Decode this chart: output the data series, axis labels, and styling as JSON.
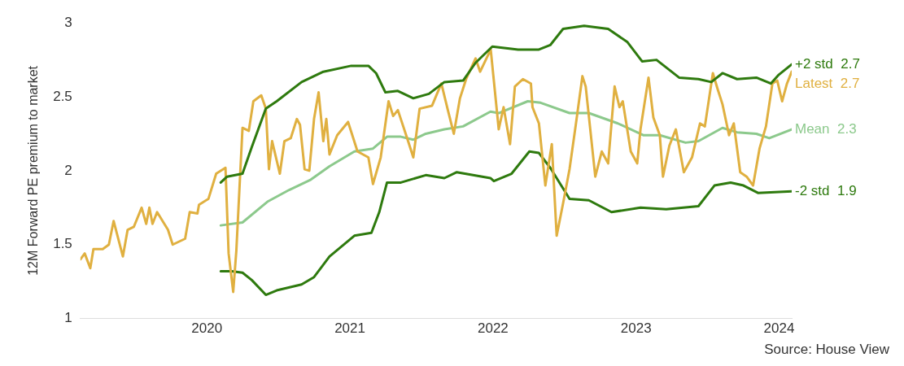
{
  "chart_data": {
    "type": "line",
    "ylabel": "12M Forward PE premium to market",
    "xlim": [
      2019.116,
      2024.088
    ],
    "xticks": [
      2020,
      2021,
      2022,
      2023,
      2024
    ],
    "ylim": [
      1,
      3
    ],
    "yticks": [
      1,
      1.5,
      2,
      2.5,
      3
    ],
    "grid": false,
    "legend": false,
    "marker": "none",
    "line_style": "solid",
    "annotations": [
      "Source: House View"
    ],
    "series": [
      {
        "name": "+2 std  2.7",
        "color": "#2e7a0e",
        "x": [
          2020.097,
          2020.141,
          2020.249,
          2020.314,
          2020.412,
          2020.488,
          2020.662,
          2020.814,
          2021.009,
          2021.129,
          2021.183,
          2021.248,
          2021.335,
          2021.443,
          2021.552,
          2021.66,
          2021.791,
          2021.878,
          2021.995,
          2022.175,
          2022.321,
          2022.4,
          2022.49,
          2022.637,
          2022.805,
          2022.94,
          2023.042,
          2023.143,
          2023.301,
          2023.436,
          2023.526,
          2023.604,
          2023.706,
          2023.841,
          2023.942,
          2023.998,
          2024.088
        ],
        "values": [
          1.92,
          1.96,
          1.98,
          2.16,
          2.42,
          2.47,
          2.6,
          2.67,
          2.71,
          2.71,
          2.66,
          2.53,
          2.54,
          2.49,
          2.52,
          2.6,
          2.61,
          2.73,
          2.84,
          2.82,
          2.82,
          2.85,
          2.96,
          2.98,
          2.96,
          2.87,
          2.74,
          2.75,
          2.63,
          2.62,
          2.6,
          2.66,
          2.62,
          2.63,
          2.59,
          2.65,
          2.72
        ]
      },
      {
        "name": "Latest  2.7",
        "color": "#e0b040",
        "x": [
          2019.116,
          2019.146,
          2019.185,
          2019.207,
          2019.272,
          2019.315,
          2019.348,
          2019.413,
          2019.446,
          2019.489,
          2019.544,
          2019.576,
          2019.598,
          2019.62,
          2019.652,
          2019.728,
          2019.761,
          2019.848,
          2019.88,
          2019.934,
          2019.945,
          2020.011,
          2020.065,
          2020.13,
          2020.152,
          2020.184,
          2020.206,
          2020.249,
          2020.293,
          2020.325,
          2020.38,
          2020.412,
          2020.434,
          2020.456,
          2020.51,
          2020.542,
          2020.586,
          2020.629,
          2020.651,
          2020.683,
          2020.716,
          2020.749,
          2020.781,
          2020.814,
          2020.835,
          2020.857,
          2020.911,
          2020.987,
          2021.053,
          2021.129,
          2021.161,
          2021.215,
          2021.27,
          2021.302,
          2021.335,
          2021.4,
          2021.443,
          2021.487,
          2021.574,
          2021.639,
          2021.682,
          2021.726,
          2021.769,
          2021.812,
          2021.878,
          2021.91,
          2021.984,
          2022.04,
          2022.074,
          2022.119,
          2022.153,
          2022.209,
          2022.265,
          2022.276,
          2022.321,
          2022.366,
          2022.411,
          2022.445,
          2022.49,
          2022.535,
          2022.58,
          2022.625,
          2022.648,
          2022.715,
          2022.76,
          2022.805,
          2022.85,
          2022.884,
          2022.907,
          2022.963,
          2023.008,
          2023.031,
          2023.087,
          2023.121,
          2023.166,
          2023.188,
          2023.233,
          2023.278,
          2023.334,
          2023.391,
          2023.447,
          2023.481,
          2023.537,
          2023.571,
          2023.604,
          2023.65,
          2023.683,
          2023.728,
          2023.773,
          2023.818,
          2023.863,
          2023.908,
          2023.953,
          2023.987,
          2024.021,
          2024.055,
          2024.088
        ],
        "values": [
          1.4,
          1.44,
          1.34,
          1.47,
          1.47,
          1.5,
          1.66,
          1.42,
          1.6,
          1.62,
          1.75,
          1.64,
          1.75,
          1.64,
          1.72,
          1.6,
          1.5,
          1.54,
          1.72,
          1.71,
          1.77,
          1.81,
          1.98,
          2.02,
          1.44,
          1.18,
          1.46,
          2.29,
          2.27,
          2.47,
          2.51,
          2.42,
          2.01,
          2.2,
          1.98,
          2.2,
          2.22,
          2.35,
          2.31,
          2.01,
          2.0,
          2.35,
          2.53,
          2.2,
          2.35,
          2.11,
          2.24,
          2.33,
          2.13,
          2.09,
          1.91,
          2.09,
          2.47,
          2.37,
          2.41,
          2.22,
          2.09,
          2.42,
          2.44,
          2.59,
          2.42,
          2.25,
          2.49,
          2.62,
          2.76,
          2.67,
          2.82,
          2.28,
          2.43,
          2.18,
          2.57,
          2.62,
          2.59,
          2.43,
          2.32,
          1.9,
          2.18,
          1.56,
          1.78,
          2.01,
          2.32,
          2.64,
          2.57,
          1.96,
          2.13,
          2.05,
          2.57,
          2.43,
          2.47,
          2.13,
          2.05,
          2.28,
          2.63,
          2.36,
          2.24,
          1.96,
          2.17,
          2.28,
          1.99,
          2.09,
          2.32,
          2.3,
          2.66,
          2.55,
          2.45,
          2.24,
          2.32,
          1.99,
          1.96,
          1.9,
          2.15,
          2.3,
          2.59,
          2.61,
          2.47,
          2.59,
          2.67
        ]
      },
      {
        "name": "Mean  2.3",
        "color": "#8cc98c",
        "x": [
          2020.097,
          2020.249,
          2020.423,
          2020.575,
          2020.727,
          2020.857,
          2021.031,
          2021.161,
          2021.259,
          2021.356,
          2021.443,
          2021.53,
          2021.66,
          2021.791,
          2021.982,
          2022.04,
          2022.243,
          2022.333,
          2022.535,
          2022.67,
          2022.873,
          2023.053,
          2023.166,
          2023.346,
          2023.436,
          2023.604,
          2023.706,
          2023.841,
          2023.931,
          2024.088
        ],
        "values": [
          1.63,
          1.65,
          1.79,
          1.87,
          1.94,
          2.03,
          2.13,
          2.15,
          2.23,
          2.23,
          2.21,
          2.25,
          2.28,
          2.3,
          2.4,
          2.39,
          2.47,
          2.46,
          2.39,
          2.39,
          2.32,
          2.24,
          2.24,
          2.19,
          2.2,
          2.29,
          2.26,
          2.25,
          2.22,
          2.28
        ]
      },
      {
        "name": "-2 std  1.9",
        "color": "#2e7a0e",
        "x": [
          2020.097,
          2020.173,
          2020.249,
          2020.314,
          2020.412,
          2020.488,
          2020.662,
          2020.749,
          2020.857,
          2021.031,
          2021.15,
          2021.205,
          2021.259,
          2021.356,
          2021.53,
          2021.66,
          2021.747,
          2021.982,
          2022.006,
          2022.13,
          2022.254,
          2022.321,
          2022.4,
          2022.535,
          2022.67,
          2022.828,
          2023.031,
          2023.211,
          2023.436,
          2023.548,
          2023.661,
          2023.751,
          2023.852,
          2024.088
        ],
        "values": [
          1.32,
          1.32,
          1.31,
          1.26,
          1.16,
          1.19,
          1.23,
          1.28,
          1.42,
          1.56,
          1.58,
          1.72,
          1.92,
          1.92,
          1.97,
          1.95,
          1.99,
          1.95,
          1.93,
          1.98,
          2.13,
          2.12,
          2.02,
          1.81,
          1.8,
          1.72,
          1.75,
          1.74,
          1.76,
          1.9,
          1.92,
          1.9,
          1.85,
          1.86
        ]
      }
    ]
  }
}
